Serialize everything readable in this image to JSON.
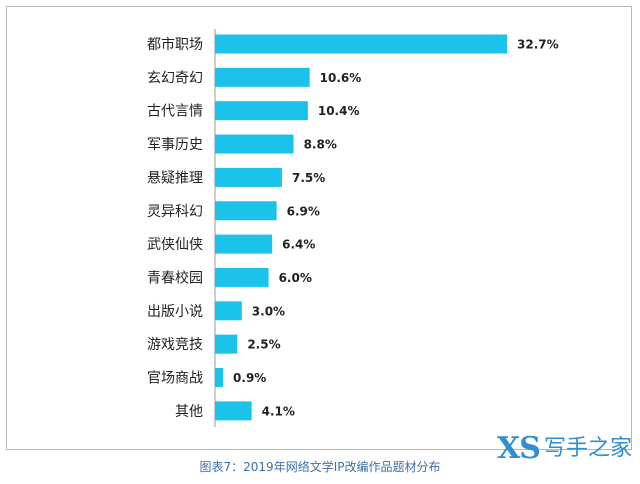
{
  "chart_data": {
    "type": "bar",
    "orientation": "horizontal",
    "categories": [
      "都市职场",
      "玄幻奇幻",
      "古代言情",
      "军事历史",
      "悬疑推理",
      "灵异科幻",
      "武侠仙侠",
      "青春校园",
      "出版小说",
      "游戏竞技",
      "官场商战",
      "其他"
    ],
    "values": [
      32.7,
      10.6,
      10.4,
      8.8,
      7.5,
      6.9,
      6.4,
      6.0,
      3.0,
      2.5,
      0.9,
      4.1
    ],
    "value_labels": [
      "32.7%",
      "10.6%",
      "10.4%",
      "8.8%",
      "7.5%",
      "6.9%",
      "6.4%",
      "6.0%",
      "3.0%",
      "2.5%",
      "0.9%",
      "4.1%"
    ],
    "title": "",
    "xlabel": "",
    "ylabel": "",
    "xlim": [
      0,
      33
    ],
    "grid": false,
    "legend": "none",
    "bar_color": "#1bc3ea",
    "axis_color": "#9a9a9a"
  },
  "caption": "图表7：2019年网络文学IP改编作品题材分布",
  "watermark": {
    "logo": "XS",
    "text": "写手之家"
  }
}
